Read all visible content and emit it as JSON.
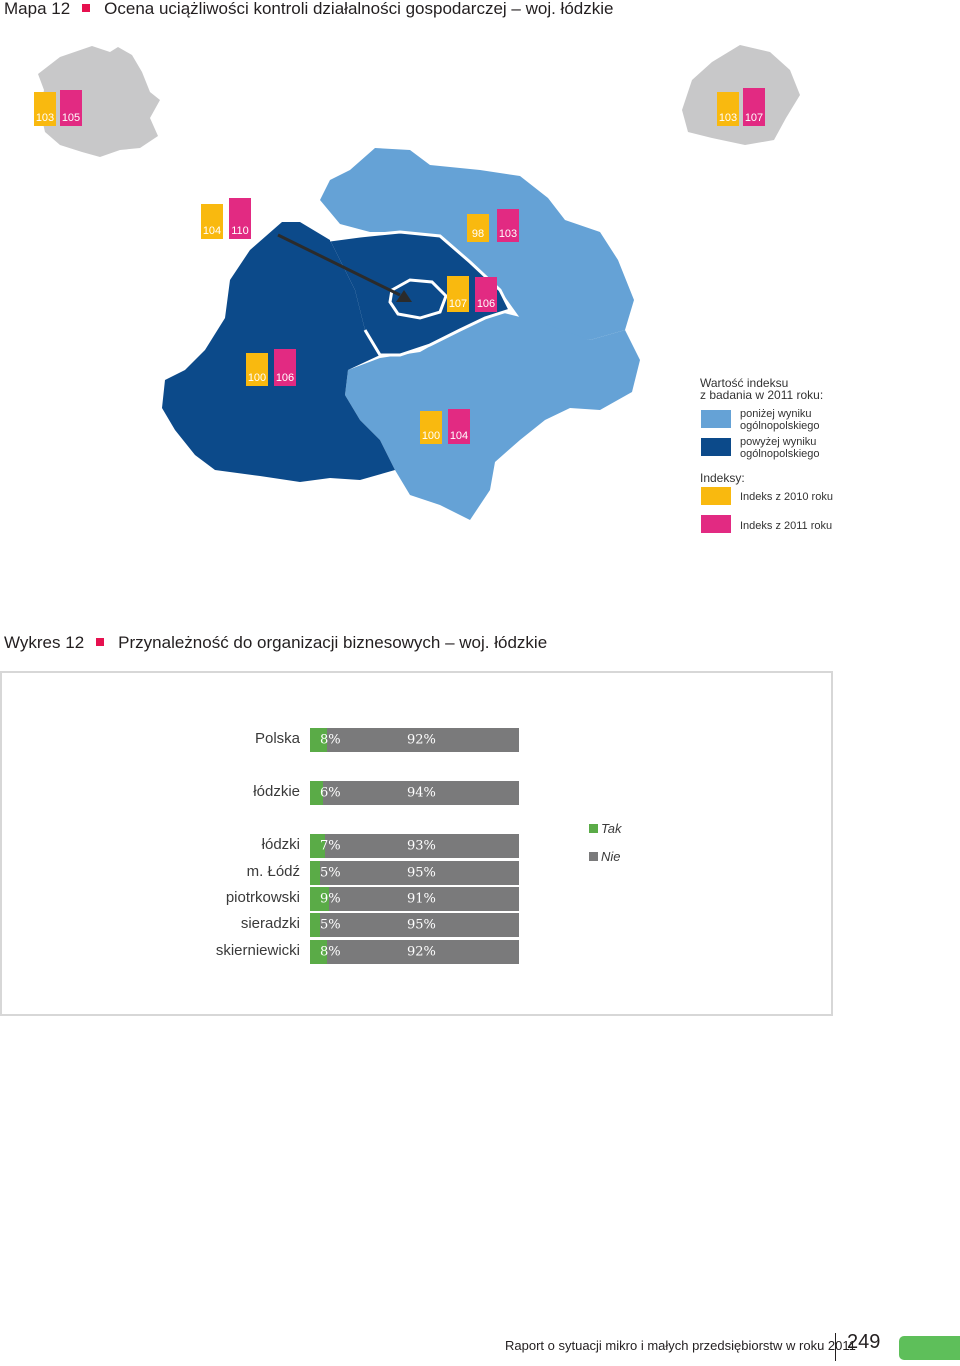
{
  "map_heading": {
    "number": "Mapa 12",
    "title": "Ocena uciążliwości kontroli działalności gospodarczej – woj. łódzkie"
  },
  "map": {
    "poland": {
      "v2010": "103",
      "v2011": "105"
    },
    "lodzkie": {
      "v2010": "103",
      "v2011": "107"
    },
    "subregions": [
      {
        "id": "lodzki-nw",
        "v2010": "104",
        "v2011": "110"
      },
      {
        "id": "skierniewicki",
        "v2010": "98",
        "v2011": "103"
      },
      {
        "id": "m-lodz",
        "v2010": "107",
        "v2011": "106"
      },
      {
        "id": "sieradzki",
        "v2010": "100",
        "v2011": "106"
      },
      {
        "id": "piotrkowski",
        "v2010": "100",
        "v2011": "104"
      }
    ],
    "colors": {
      "below": "#65a2d6",
      "above": "#0c4a8a",
      "outline": "#c8c8c9",
      "y2010": "#f9b90f",
      "y2011": "#e22a82"
    }
  },
  "map_legend": {
    "title_line1": "Wartość indeksu",
    "title_line2": "z badania w 2011 roku:",
    "below_line1": "poniżej wyniku",
    "below_line2": "ogólnopolskiego",
    "above_line1": "powyżej wyniku",
    "above_line2": "ogólnopolskiego",
    "indices_title": "Indeksy:",
    "index_2010": "Indeks z 2010 roku",
    "index_2011": "Indeks z 2011 roku"
  },
  "chart_heading": {
    "number": "Wykres 12",
    "title": "Przynależność do organizacji biznesowych – woj. łódzkie"
  },
  "chart_data": {
    "type": "bar",
    "orientation": "horizontal-stacked-100",
    "categories": [
      "Polska",
      "łódzkie",
      "łódzki",
      "m. Łódź",
      "piotrkowski",
      "sieradzki",
      "skierniewicki"
    ],
    "series": [
      {
        "name": "Tak",
        "values": [
          8,
          6,
          7,
          5,
          9,
          5,
          8
        ],
        "labels": [
          "8%",
          "6%",
          "7%",
          "5%",
          "9%",
          "5%",
          "8%"
        ],
        "color": "#5aab47"
      },
      {
        "name": "Nie",
        "values": [
          92,
          94,
          93,
          95,
          91,
          95,
          92
        ],
        "labels": [
          "92%",
          "94%",
          "93%",
          "95%",
          "91%",
          "95%",
          "92%"
        ],
        "color": "#7a7a7b"
      }
    ],
    "xlim": [
      0,
      100
    ],
    "legend": "right"
  },
  "footer": {
    "text": "Raport o sytuacji mikro i małych przedsiębiorstw w roku 2011",
    "page": "249"
  }
}
